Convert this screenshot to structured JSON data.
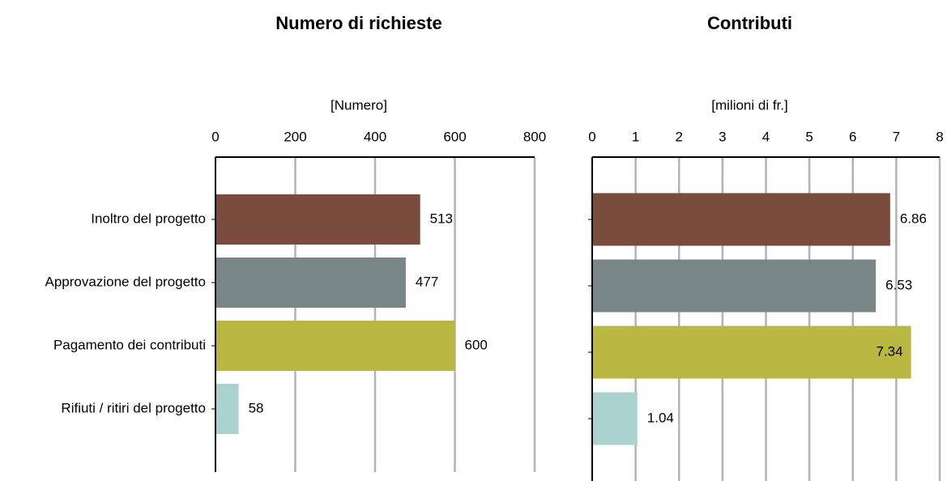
{
  "chart_data": [
    {
      "type": "bar",
      "orientation": "horizontal",
      "title": "Numero di richieste",
      "x_label": "[Numero]",
      "categories": [
        "Inoltro del progetto",
        "Approvazione del progetto",
        "Pagamento dei contributi",
        "Rifiuti  / ritiri del progetto"
      ],
      "values": [
        513,
        477,
        600,
        58
      ],
      "colors": [
        "#7a4c3d",
        "#788786",
        "#b9b641",
        "#aad3d0"
      ],
      "xlim": [
        0,
        800
      ],
      "xticks": [
        0,
        200,
        400,
        600,
        800
      ],
      "grid": true
    },
    {
      "type": "bar",
      "orientation": "horizontal",
      "title": "Contributi",
      "x_label": "[milioni di fr.]",
      "values": [
        6.86,
        6.53,
        7.34,
        1.04
      ],
      "colors": [
        "#7a4c3d",
        "#788786",
        "#b9b641",
        "#aad3d0"
      ],
      "xlim": [
        0,
        8
      ],
      "xticks": [
        0,
        1,
        2,
        3,
        4,
        5,
        6,
        7,
        8
      ],
      "grid": true
    }
  ]
}
